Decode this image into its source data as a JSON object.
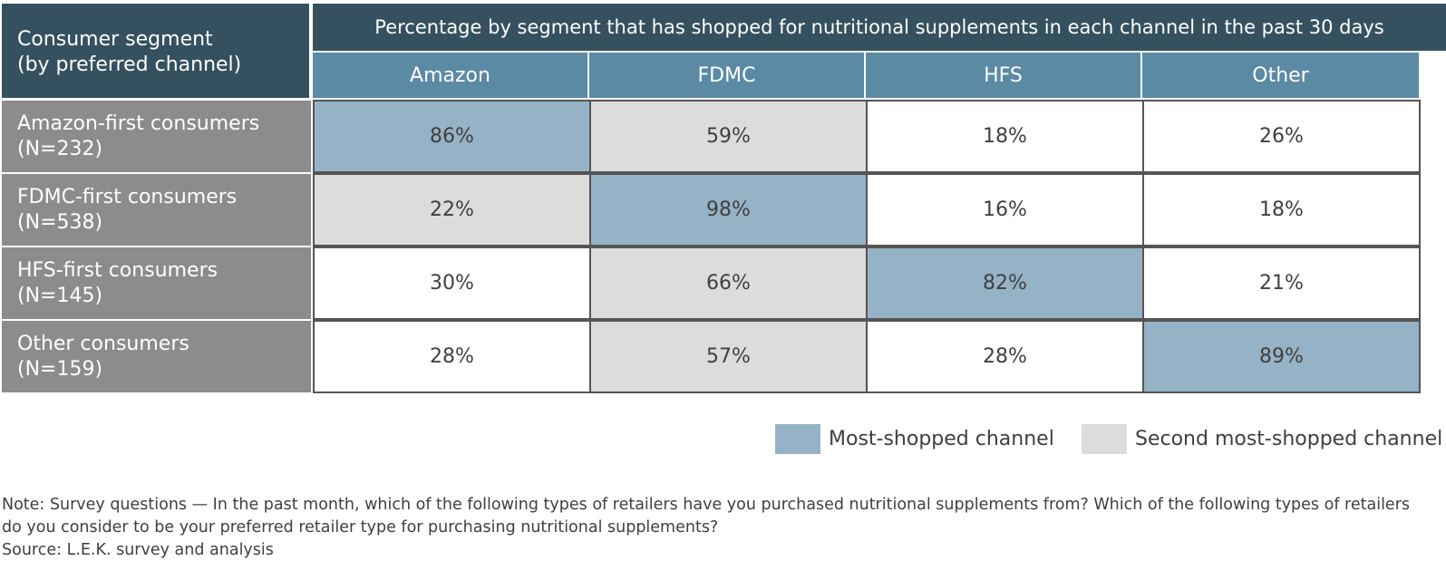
{
  "chart_data": {
    "type": "table",
    "header": {
      "segment": "Consumer segment\n(by preferred channel)",
      "title": "Percentage by segment that has shopped for nutritional supplements in each channel in the past 30 days"
    },
    "columns": [
      "Amazon",
      "FDMC",
      "HFS",
      "Other"
    ],
    "rows": [
      {
        "label": "Amazon-first consumers\n(N=232)",
        "values": [
          "86%",
          "59%",
          "18%",
          "26%"
        ],
        "highlight": [
          "most",
          "second",
          "none",
          "none"
        ]
      },
      {
        "label": "FDMC-first consumers\n(N=538)",
        "values": [
          "22%",
          "98%",
          "16%",
          "18%"
        ],
        "highlight": [
          "second",
          "most",
          "none",
          "none"
        ]
      },
      {
        "label": "HFS-first consumers\n(N=145)",
        "values": [
          "30%",
          "66%",
          "82%",
          "21%"
        ],
        "highlight": [
          "none",
          "second",
          "most",
          "none"
        ]
      },
      {
        "label": "Other consumers\n(N=159)",
        "values": [
          "28%",
          "57%",
          "28%",
          "89%"
        ],
        "highlight": [
          "none",
          "second",
          "none",
          "most"
        ]
      }
    ],
    "legend": [
      {
        "label": "Most-shopped channel",
        "color": "#96b2c6"
      },
      {
        "label": "Second most-shopped channel",
        "color": "#dcdcdc"
      }
    ]
  },
  "colors": {
    "header_dark": "#35515f",
    "header_channel": "#5b8aa5",
    "row_label": "#8c8c8c",
    "most": "#96b2c6",
    "second": "#dcdcdc",
    "none": "#ffffff"
  },
  "note": "Note: Survey questions — In the past month, which of the following types of retailers have you purchased nutritional supplements from? Which of the following types of retailers do you consider to be your preferred retailer type for purchasing nutritional supplements?",
  "source": "Source: L.E.K. survey and analysis"
}
